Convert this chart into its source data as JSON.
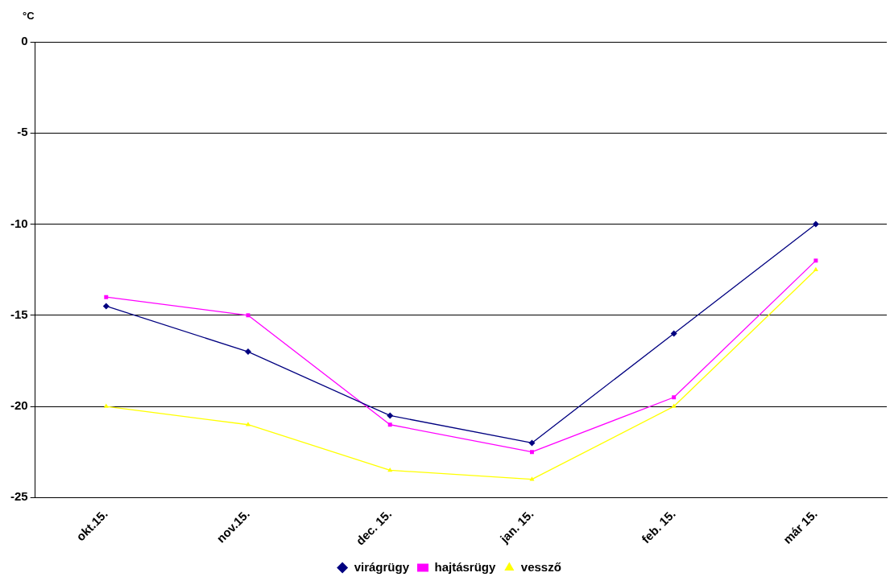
{
  "chart_data": {
    "type": "line",
    "ylabel": "°C",
    "categories": [
      "okt.15.",
      "nov.15.",
      "dec. 15.",
      "jan. 15.",
      "feb. 15.",
      "már 15."
    ],
    "series": [
      {
        "name": "virágrügy",
        "color": "#000080",
        "marker": "diamond",
        "values": [
          -14.5,
          -17,
          -20.5,
          -22,
          -16,
          -10
        ]
      },
      {
        "name": "hajtásrügy",
        "color": "#ff00ff",
        "marker": "square",
        "values": [
          -14,
          -15,
          -21,
          -22.5,
          -19.5,
          -12
        ]
      },
      {
        "name": "vessző",
        "color": "#ffff00",
        "marker": "triangle",
        "values": [
          -20,
          -21,
          -23.5,
          -24,
          -20,
          -12.5
        ]
      }
    ],
    "ylim": [
      -25,
      0
    ],
    "yticks": [
      -25,
      -20,
      -15,
      -10,
      -5,
      0
    ],
    "grid": "y",
    "legend": "bottom",
    "line_style": "solid"
  }
}
